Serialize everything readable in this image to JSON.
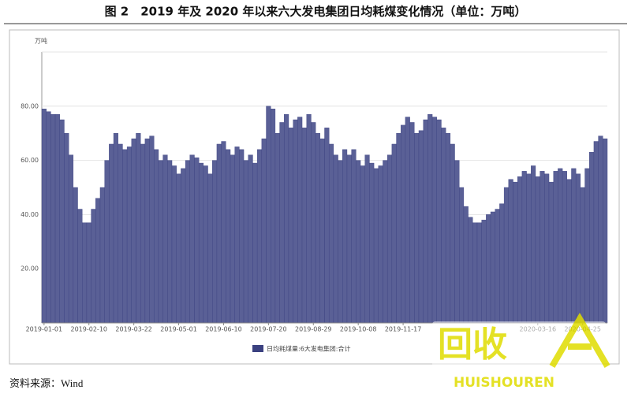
{
  "chart_data": {
    "type": "bar",
    "title": "图 2　2019 年及 2020 年以来六大发电集团日均耗煤变化情况（单位：万吨）",
    "y_unit": "万吨",
    "source": "资料来源：Wind",
    "watermark": {
      "text": "回收",
      "subtext": "HUISHOUREN"
    },
    "categories": [
      "2019-01-01",
      null,
      null,
      null,
      null,
      null,
      null,
      null,
      null,
      null,
      "2019-02-10",
      null,
      null,
      null,
      null,
      null,
      null,
      null,
      null,
      null,
      "2019-03-22",
      null,
      null,
      null,
      null,
      null,
      null,
      null,
      null,
      null,
      "2019-05-01",
      null,
      null,
      null,
      null,
      null,
      null,
      null,
      null,
      null,
      "2019-06-10",
      null,
      null,
      null,
      null,
      null,
      null,
      null,
      null,
      null,
      "2019-07-20",
      null,
      null,
      null,
      null,
      null,
      null,
      null,
      null,
      null,
      "2019-08-29",
      null,
      null,
      null,
      null,
      null,
      null,
      null,
      null,
      null,
      "2019-10-08",
      null,
      null,
      null,
      null,
      null,
      null,
      null,
      null,
      null,
      "2019-11-17",
      null,
      null,
      null,
      null,
      null,
      null,
      null,
      null,
      null,
      null,
      null,
      null,
      null,
      null,
      null,
      null,
      null,
      null,
      null,
      null,
      null,
      null,
      null,
      null,
      null,
      null,
      null,
      null,
      null,
      "2020-03-16",
      null,
      null,
      null,
      null,
      null,
      null,
      null,
      null,
      null,
      "2020-04-25",
      null,
      null,
      null,
      null,
      null
    ],
    "series": [
      {
        "name": "日均耗煤量:6大发电集团:合计",
        "color": "#5a6096",
        "values": [
          79,
          78,
          77,
          77,
          75,
          70,
          62,
          50,
          42,
          37,
          37,
          42,
          46,
          50,
          60,
          66,
          70,
          66,
          64,
          65,
          68,
          70,
          66,
          68,
          69,
          64,
          60,
          62,
          60,
          58,
          55,
          57,
          60,
          62,
          61,
          59,
          58,
          55,
          60,
          66,
          67,
          64,
          62,
          65,
          64,
          60,
          62,
          59,
          64,
          68,
          80,
          79,
          70,
          74,
          77,
          72,
          75,
          76,
          72,
          77,
          74,
          70,
          68,
          72,
          66,
          62,
          60,
          64,
          62,
          64,
          60,
          58,
          62,
          59,
          57,
          58,
          60,
          62,
          66,
          70,
          73,
          76,
          74,
          70,
          71,
          75,
          77,
          76,
          75,
          72,
          70,
          66,
          60,
          50,
          43,
          39,
          37,
          37,
          38,
          40,
          41,
          42,
          44,
          50,
          53,
          52,
          54,
          56,
          55,
          58,
          54,
          56,
          55,
          52,
          56,
          57,
          56,
          53,
          57,
          55,
          50,
          57,
          63,
          67,
          69,
          68
        ]
      }
    ],
    "ylim": [
      0,
      100
    ],
    "yticks": [
      {
        "value": 20,
        "label": "20.00"
      },
      {
        "value": 40,
        "label": "40.00"
      },
      {
        "value": 60,
        "label": "60.00"
      },
      {
        "value": 80,
        "label": "80.00"
      }
    ],
    "grid": true
  }
}
